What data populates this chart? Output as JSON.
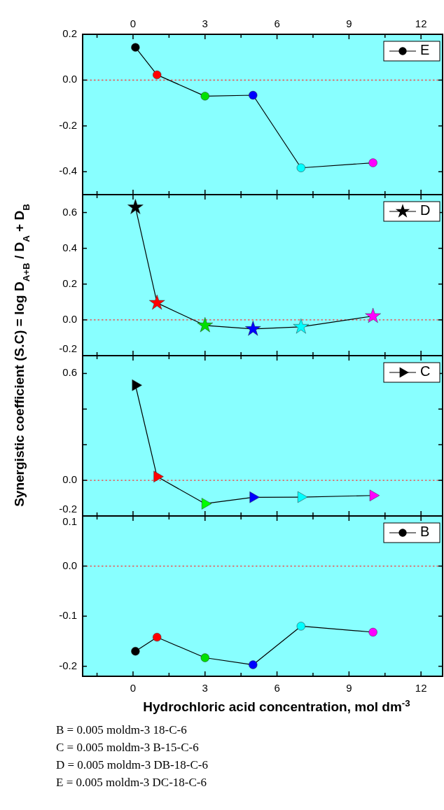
{
  "chart_data": [
    {
      "type": "line",
      "ylabel": "Synergistic coefficient (S.C) = log D$_{A+B}$ / D$_{A}$ + D$_{B}$",
      "x2lim": [
        -2.1,
        12.9
      ],
      "x2ticks": [
        {
          "value": -1.5,
          "label": null
        },
        0,
        {
          "value": 1.5,
          "label": null
        },
        3,
        {
          "value": 4.5,
          "label": null
        },
        6,
        {
          "value": 7.5,
          "label": null
        },
        9,
        {
          "value": 10.5,
          "label": null
        },
        12
      ],
      "xlim": [
        -2.1,
        12.9
      ],
      "xticks": [
        {
          "value": -1.5,
          "label": null
        },
        {
          "value": 0,
          "label": null
        },
        {
          "value": 1.5,
          "label": null
        },
        {
          "value": 3,
          "label": null
        },
        {
          "value": 4.5,
          "label": null
        },
        {
          "value": 6,
          "label": null
        },
        {
          "value": 7.5,
          "label": null
        },
        {
          "value": 9,
          "label": null
        },
        {
          "value": 10.5,
          "label": null
        },
        {
          "value": 12,
          "label": null
        }
      ],
      "ylim": [
        -0.5,
        0.2
      ],
      "yticks": [
        -0.4,
        -0.2,
        {
          "value": 0,
          "label": "0.0"
        },
        0.2
      ],
      "tick_labels": "y",
      "marker": "circle",
      "legend": "top right",
      "series": [
        {
          "name": "E",
          "color": "#000000",
          "colors": [
            "#000000",
            "#ff0000",
            "#00e000",
            "#0000ff",
            "#00ffff",
            "#ff00ff"
          ],
          "x": [
            0.1,
            1,
            3,
            5,
            7,
            10
          ],
          "values": [
            0.143,
            0.023,
            -0.07,
            -0.066,
            -0.383,
            -0.361
          ]
        }
      ],
      "ref_lines": [
        {
          "axis": "y",
          "value": 0,
          "color": "#ff3333",
          "line_style": "dotted"
        }
      ]
    },
    {
      "type": "line",
      "xlim": [
        -2.1,
        12.9
      ],
      "xticks": [
        {
          "value": -1.5,
          "label": null
        },
        {
          "value": 0,
          "label": null
        },
        {
          "value": 1.5,
          "label": null
        },
        {
          "value": 3,
          "label": null
        },
        {
          "value": 4.5,
          "label": null
        },
        {
          "value": 6,
          "label": null
        },
        {
          "value": 7.5,
          "label": null
        },
        {
          "value": 9,
          "label": null
        },
        {
          "value": 10.5,
          "label": null
        },
        {
          "value": 12,
          "label": null
        }
      ],
      "ylim": [
        -0.2,
        0.7
      ],
      "yticks": [
        -0.2,
        {
          "value": 0,
          "label": "0.0"
        },
        0.2,
        0.4,
        0.6
      ],
      "tick_labels": "y",
      "marker": "star",
      "legend": "top right",
      "series": [
        {
          "name": "D",
          "color": "#000000",
          "colors": [
            "#000000",
            "#ff0000",
            "#00e000",
            "#0000ff",
            "#00ffff",
            "#ff00ff"
          ],
          "x": [
            0.1,
            1,
            3,
            5,
            7,
            10
          ],
          "values": [
            0.629,
            0.095,
            -0.031,
            -0.051,
            -0.039,
            0.021
          ]
        }
      ],
      "ref_lines": [
        {
          "axis": "y",
          "value": 0,
          "color": "#ff3333",
          "line_style": "dotted"
        }
      ]
    },
    {
      "type": "line",
      "xlim": [
        -2.1,
        12.9
      ],
      "xticks": [
        {
          "value": -1.5,
          "label": null
        },
        {
          "value": 0,
          "label": null
        },
        {
          "value": 1.5,
          "label": null
        },
        {
          "value": 3,
          "label": null
        },
        {
          "value": 4.5,
          "label": null
        },
        {
          "value": 6,
          "label": null
        },
        {
          "value": 7.5,
          "label": null
        },
        {
          "value": 9,
          "label": null
        },
        {
          "value": 10.5,
          "label": null
        },
        {
          "value": 12,
          "label": null
        }
      ],
      "ylim": [
        -0.2,
        0.7
      ],
      "yticks": [
        -0.2,
        {
          "value": 0,
          "label": "0.0"
        },
        {
          "value": 0.2,
          "label": null
        },
        {
          "value": 0.4,
          "label": null
        },
        0.6
      ],
      "tick_labels": "y",
      "marker": "triangle",
      "legend": "top right",
      "series": [
        {
          "name": "C",
          "color": "#000000",
          "colors": [
            "#000000",
            "#ff0000",
            "#00ff00",
            "#0000ff",
            "#00ffff",
            "#ff00ff"
          ],
          "x": [
            0.1,
            1,
            3,
            5,
            7,
            10
          ],
          "values": [
            0.534,
            0.021,
            -0.131,
            -0.095,
            -0.094,
            -0.085
          ]
        }
      ],
      "ref_lines": [
        {
          "axis": "y",
          "value": 0,
          "color": "#ff3333",
          "line_style": "dotted"
        }
      ]
    },
    {
      "type": "line",
      "xlabel": "Hydrochloric acid concentration, mol dm$^{-3}$",
      "xlim": [
        -2.1,
        12.9
      ],
      "xticks": [
        {
          "value": -1.5,
          "label": null
        },
        0,
        {
          "value": 1.5,
          "label": null
        },
        3,
        {
          "value": 4.5,
          "label": null
        },
        6,
        {
          "value": 7.5,
          "label": null
        },
        9,
        {
          "value": 10.5,
          "label": null
        },
        12
      ],
      "ylim": [
        -0.22,
        0.1
      ],
      "yticks": [
        -0.2,
        -0.1,
        {
          "value": 0,
          "label": "0.0"
        },
        0.1
      ],
      "marker": "circle",
      "legend": "top right",
      "series": [
        {
          "name": "B",
          "color": "#000000",
          "colors": [
            "#000000",
            "#ff0000",
            "#00e000",
            "#0000ff",
            "#00ffff",
            "#ff00ff"
          ],
          "x": [
            0.1,
            1,
            3,
            5,
            7,
            10
          ],
          "values": [
            -0.17,
            -0.142,
            -0.183,
            -0.197,
            -0.12,
            -0.132
          ]
        }
      ],
      "ref_lines": [
        {
          "axis": "y",
          "value": 0,
          "color": "#ff3333",
          "line_style": "dotted"
        }
      ],
      "annotations": [
        "B = 0.005 moldm-3 18-C-6",
        "C = 0.005 moldm-3 B-15-C-6",
        "D = 0.005 moldm-3 DB-18-C-6",
        "E = 0.005 moldm-3 DC-18-C-6"
      ]
    }
  ]
}
